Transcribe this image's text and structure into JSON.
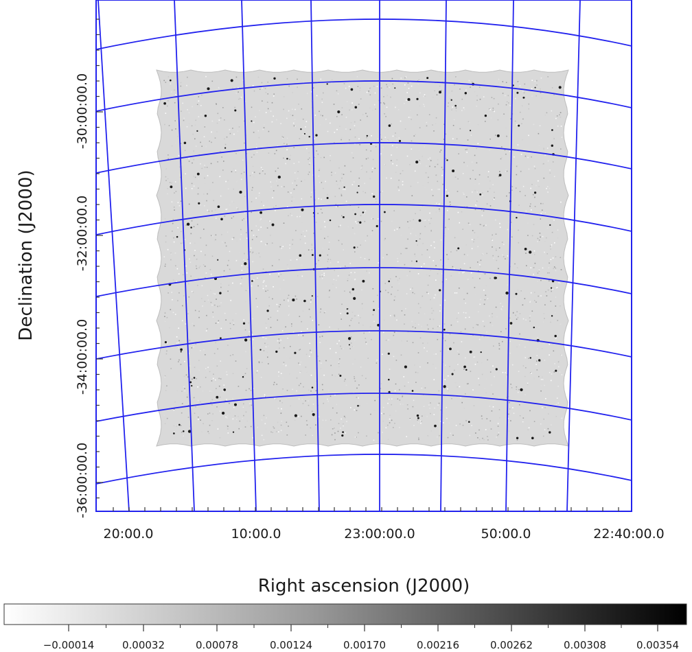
{
  "chart_data": {
    "type": "heatmap",
    "xlabel": "Right ascension (J2000)",
    "ylabel": "Declination (J2000)",
    "x_ticks": [
      "20:00.0",
      "10:00.0",
      "23:00:00.0",
      "50:00.0",
      "22:40:00.0"
    ],
    "y_ticks": [
      "-30:00:00.0",
      "-32:00:00.0",
      "-34:00:00.0",
      "-36:00:00.0"
    ],
    "colorbar": {
      "colormap": "grayscale (white to black)",
      "range": [
        -0.00037,
        0.00377
      ],
      "ticks": [
        "−0.00014",
        "0.00032",
        "0.00078",
        "0.00124",
        "0.00170",
        "0.00216",
        "0.00262",
        "0.00308",
        "0.00354"
      ]
    },
    "grid": true,
    "grid_color": "#2222ee",
    "image_fill": "#d9d9d9"
  }
}
